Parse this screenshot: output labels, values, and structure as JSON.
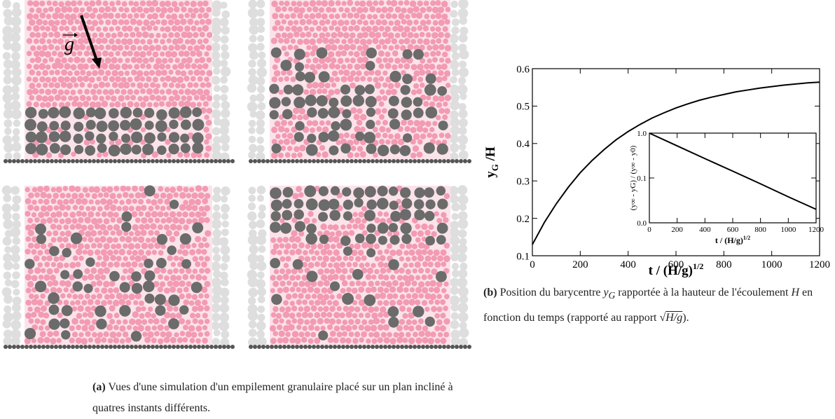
{
  "figure": {
    "panel_a": {
      "gravity_label": "g",
      "caption": {
        "label": "(a)",
        "text": "Vues d'une simulation d'un empilement granulaire placé sur un plan incliné à quatres instants différents."
      }
    },
    "panel_b": {
      "caption": {
        "label": "(b)",
        "parts": [
          "Position du barycentre ",
          "y",
          "G",
          " rapportée à la hauteur de l'écoulement ",
          "H",
          " en fonction du temps (rapporté au rapport ",
          "H/g",
          ")."
        ]
      }
    }
  },
  "chart_data": {
    "type": "line",
    "x": [
      0,
      50,
      100,
      150,
      200,
      250,
      300,
      350,
      400,
      450,
      500,
      550,
      600,
      650,
      700,
      750,
      800,
      850,
      900,
      950,
      1000,
      1050,
      1100,
      1150,
      1200
    ],
    "series": [
      {
        "color": "#000000",
        "values": [
          0.13,
          0.189,
          0.239,
          0.283,
          0.322,
          0.355,
          0.384,
          0.41,
          0.432,
          0.451,
          0.468,
          0.482,
          0.495,
          0.506,
          0.516,
          0.524,
          0.531,
          0.538,
          0.543,
          0.548,
          0.552,
          0.556,
          0.559,
          0.562,
          0.564
        ]
      }
    ],
    "xlim": [
      0,
      1200
    ],
    "ylim": [
      0.1,
      0.6
    ],
    "xticks": [
      0,
      200,
      400,
      600,
      800,
      1000,
      1200
    ],
    "yticks": [
      0.1,
      0.2,
      0.3,
      0.4,
      0.5,
      0.6
    ],
    "x_label": {
      "text": "t / (H/g)",
      "sup": "1/2"
    },
    "y_label": {
      "text": "y",
      "sub": "G",
      "rest": " /H"
    },
    "inset": {
      "type": "line",
      "log_y": true,
      "x": [
        0,
        200,
        400,
        600,
        800,
        1000,
        1200
      ],
      "series": [
        {
          "color": "#000000",
          "values": [
            1.0,
            0.52,
            0.27,
            0.142,
            0.074,
            0.038,
            0.02
          ]
        }
      ],
      "xlim": [
        0,
        1200
      ],
      "ylim": [
        0.01,
        1
      ],
      "xticks": [
        0,
        200,
        400,
        600,
        800,
        1000,
        1200
      ],
      "yticks": [
        {
          "value": 0.01,
          "label": "0.0"
        },
        {
          "value": 0.1,
          "label": "0.1"
        },
        {
          "value": 1,
          "label": "1.0"
        }
      ],
      "x_label": {
        "text": "t / (H/g)",
        "sup": "1/2"
      },
      "y_label": "(y∞ - yG) / (y∞ - y0)"
    }
  }
}
